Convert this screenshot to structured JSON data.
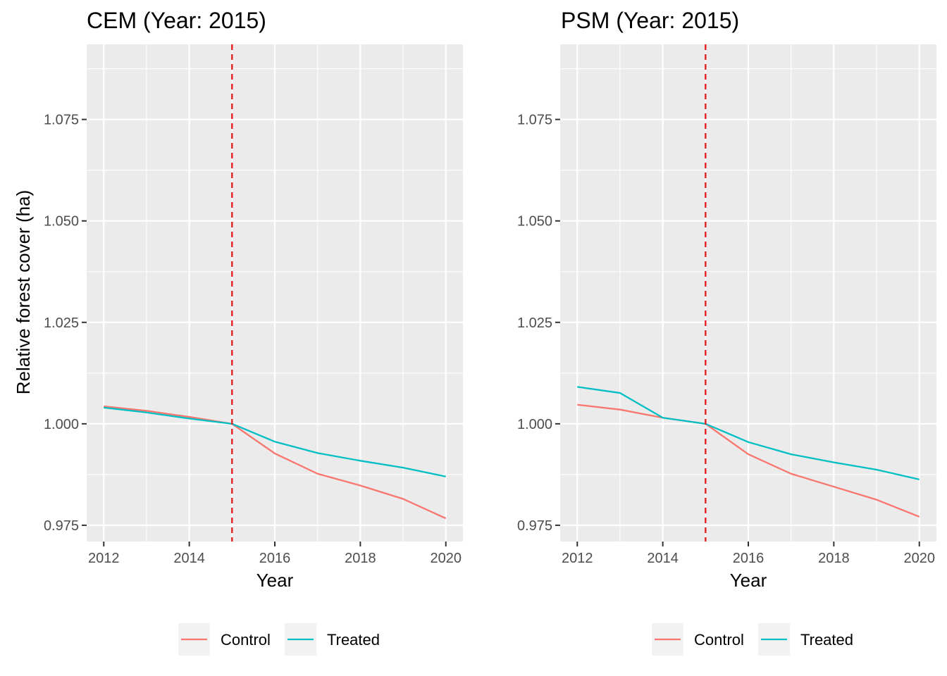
{
  "chart_data": [
    {
      "type": "line",
      "title": "CEM (Year: 2015)",
      "xlabel": "Year",
      "ylabel": "Relative forest cover (ha)",
      "xlim": [
        2011.6,
        2020.4
      ],
      "ylim": [
        0.971,
        1.0935
      ],
      "x_ticks": [
        2012,
        2014,
        2016,
        2018,
        2020
      ],
      "y_ticks": [
        0.975,
        1.0,
        1.025,
        1.05,
        1.075
      ],
      "x_tick_labels": [
        "2012",
        "2014",
        "2016",
        "2018",
        "2020"
      ],
      "y_tick_labels": [
        "0.975",
        "1.000",
        "1.025",
        "1.050",
        "1.075"
      ],
      "vline": {
        "x": 2015,
        "color": "#e41a1c",
        "style": "dashed"
      },
      "grid": true,
      "legend_position": "bottom",
      "x": [
        2012,
        2013,
        2014,
        2015,
        2016,
        2017,
        2018,
        2019,
        2020
      ],
      "series": [
        {
          "name": "Control",
          "color": "#f8766d",
          "values": [
            1.0043,
            1.0032,
            1.0017,
            1.0,
            0.9927,
            0.9877,
            0.9848,
            0.9815,
            0.9767
          ]
        },
        {
          "name": "Treated",
          "color": "#00bfc4",
          "values": [
            1.004,
            1.0028,
            1.0013,
            1.0,
            0.9956,
            0.9928,
            0.9909,
            0.9892,
            0.987
          ]
        }
      ]
    },
    {
      "type": "line",
      "title": "PSM (Year: 2015)",
      "xlabel": "Year",
      "ylabel": "",
      "xlim": [
        2011.6,
        2020.4
      ],
      "ylim": [
        0.971,
        1.0935
      ],
      "x_ticks": [
        2012,
        2014,
        2016,
        2018,
        2020
      ],
      "y_ticks": [
        0.975,
        1.0,
        1.025,
        1.05,
        1.075
      ],
      "x_tick_labels": [
        "2012",
        "2014",
        "2016",
        "2018",
        "2020"
      ],
      "y_tick_labels": [
        "0.975",
        "1.000",
        "1.025",
        "1.050",
        "1.075"
      ],
      "vline": {
        "x": 2015,
        "color": "#e41a1c",
        "style": "dashed"
      },
      "grid": true,
      "legend_position": "bottom",
      "x": [
        2012,
        2013,
        2014,
        2015,
        2016,
        2017,
        2018,
        2019,
        2020
      ],
      "series": [
        {
          "name": "Control",
          "color": "#f8766d",
          "values": [
            1.0047,
            1.0035,
            1.0015,
            1.0,
            0.9925,
            0.9877,
            0.9845,
            0.9813,
            0.9771
          ]
        },
        {
          "name": "Treated",
          "color": "#00bfc4",
          "values": [
            1.0091,
            1.0076,
            1.0015,
            1.0,
            0.9955,
            0.9925,
            0.9905,
            0.9887,
            0.9863
          ]
        }
      ]
    }
  ]
}
